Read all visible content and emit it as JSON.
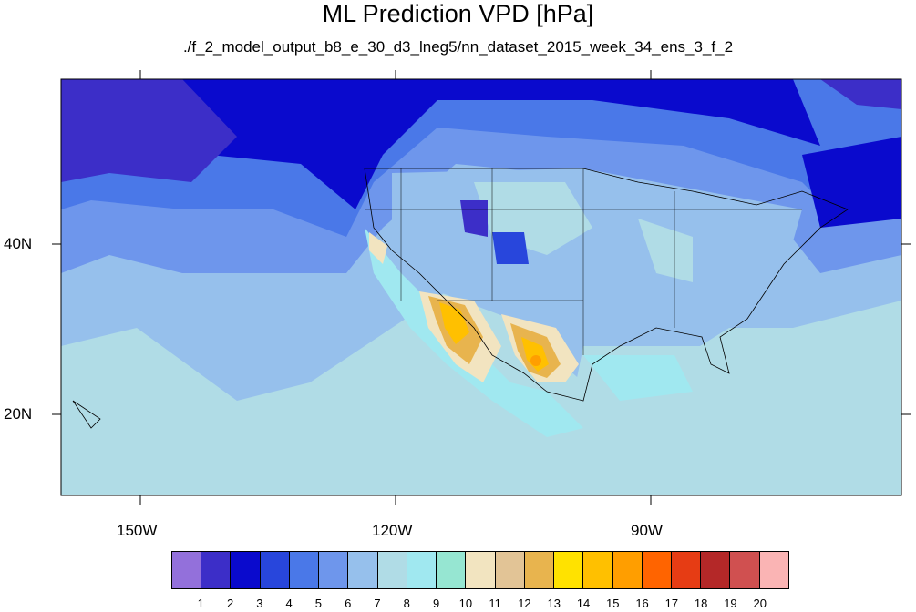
{
  "title": "ML Prediction VPD [hPa]",
  "subtitle": "./f_2_model_output_b8_e_30_d3_lneg5/nn_dataset_2015_week_34_ens_3_f_2",
  "axes": {
    "lon_labels": [
      "150W",
      "120W",
      "90W"
    ],
    "lat_labels": [
      "40N",
      "20N"
    ]
  },
  "colorbar": {
    "labels": [
      "1",
      "2",
      "3",
      "4",
      "5",
      "6",
      "7",
      "8",
      "9",
      "10",
      "11",
      "12",
      "13",
      "14",
      "15",
      "16",
      "17",
      "18",
      "19",
      "20"
    ],
    "colors": [
      "#9370db",
      "#3c2ec8",
      "#0a0acd",
      "#2846dc",
      "#4a78e8",
      "#6e96ec",
      "#96c0ec",
      "#b0dce6",
      "#a0e8f0",
      "#96e6d2",
      "#f2e4c0",
      "#e2c496",
      "#e8b44e",
      "#ffe200",
      "#ffc000",
      "#ff9e00",
      "#ff6400",
      "#e63c14",
      "#b42828",
      "#d05050",
      "#fab4b4"
    ]
  }
}
